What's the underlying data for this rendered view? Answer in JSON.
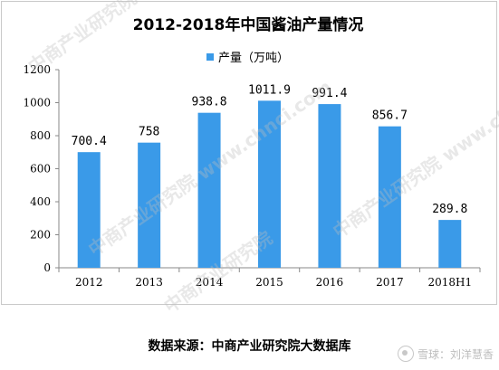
{
  "chart_data": {
    "type": "bar",
    "title": "2012-2018年中国酱油产量情况",
    "legend": "产量（万吨）",
    "categories": [
      "2012",
      "2013",
      "2014",
      "2015",
      "2016",
      "2017",
      "2018H1"
    ],
    "series": [
      {
        "name": "产量（万吨）",
        "values": [
          700.4,
          758,
          938.8,
          1011.9,
          991.4,
          856.7,
          289.8
        ]
      }
    ],
    "value_labels": [
      "700.4",
      "758",
      "938.8",
      "1011.9",
      "991.4",
      "856.7",
      "289.8"
    ],
    "ylim": [
      0,
      1200
    ],
    "yticks": [
      0,
      200,
      400,
      600,
      800,
      1000,
      1200
    ],
    "grid": false,
    "legend_position": "top-center",
    "bar_color": "#3a9ae8"
  },
  "source": "数据来源：中商产业研究院大数据库",
  "watermark_brand": "雪球：刘洋慧香"
}
